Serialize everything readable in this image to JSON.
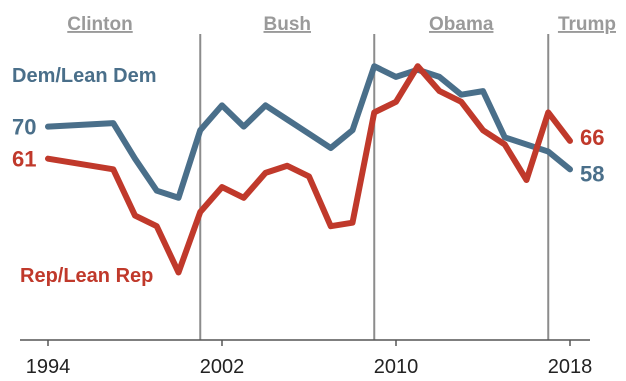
{
  "chart_data": {
    "type": "line",
    "title": "",
    "xlabel": "",
    "ylabel": "",
    "x": [
      1994,
      1997,
      1998,
      1999,
      2000,
      2001,
      2002,
      2003,
      2004,
      2005,
      2006,
      2007,
      2008,
      2009,
      2010,
      2011,
      2012,
      2013,
      2014,
      2015,
      2016,
      2017,
      2018
    ],
    "series": [
      {
        "name": "Dem/Lean Dem",
        "color": "#4a6f8a",
        "values": [
          70,
          71,
          61,
          52,
          50,
          69,
          76,
          70,
          76,
          72,
          68,
          64,
          69,
          87,
          84,
          86,
          84,
          79,
          80,
          67,
          65,
          63,
          58
        ]
      },
      {
        "name": "Rep/Lean Rep",
        "color": "#c0392b",
        "values": [
          61,
          58,
          45,
          42,
          29,
          46,
          53,
          50,
          57,
          59,
          56,
          42,
          43,
          74,
          77,
          87,
          80,
          77,
          69,
          65,
          55,
          74,
          66
        ]
      }
    ],
    "end_labels": [
      {
        "series": "Dem/Lean Dem",
        "start": "70",
        "end": "58"
      },
      {
        "series": "Rep/Lean Rep",
        "start": "61",
        "end": "66"
      }
    ],
    "x_ticks": [
      "1994",
      "2002",
      "2010",
      "2018"
    ],
    "eras": [
      {
        "label": "Clinton",
        "start": 1994,
        "end": 2001
      },
      {
        "label": "Bush",
        "start": 2001,
        "end": 2009
      },
      {
        "label": "Obama",
        "start": 2009,
        "end": 2017
      },
      {
        "label": "Trump",
        "start": 2017,
        "end": 2018
      }
    ],
    "era_dividers": [
      2001,
      2009,
      2017
    ],
    "xlim": [
      1994,
      2018
    ],
    "ylim": [
      10,
      100
    ],
    "grid": false,
    "legend": "inline-labels"
  }
}
